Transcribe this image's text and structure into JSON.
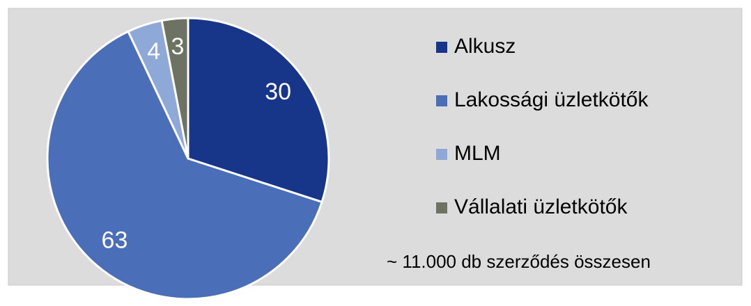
{
  "chart_data": {
    "type": "pie",
    "categories": [
      "Alkusz",
      "Lakossági üzletkötők",
      "MLM",
      "Vállalati üzletkötők"
    ],
    "values": [
      30,
      63,
      4,
      3
    ],
    "colors": [
      "#17368a",
      "#4a6fb8",
      "#8ea8d8",
      "#6e7263"
    ],
    "annotation": "~ 11.000 db szerződés összesen",
    "legend": "right"
  }
}
